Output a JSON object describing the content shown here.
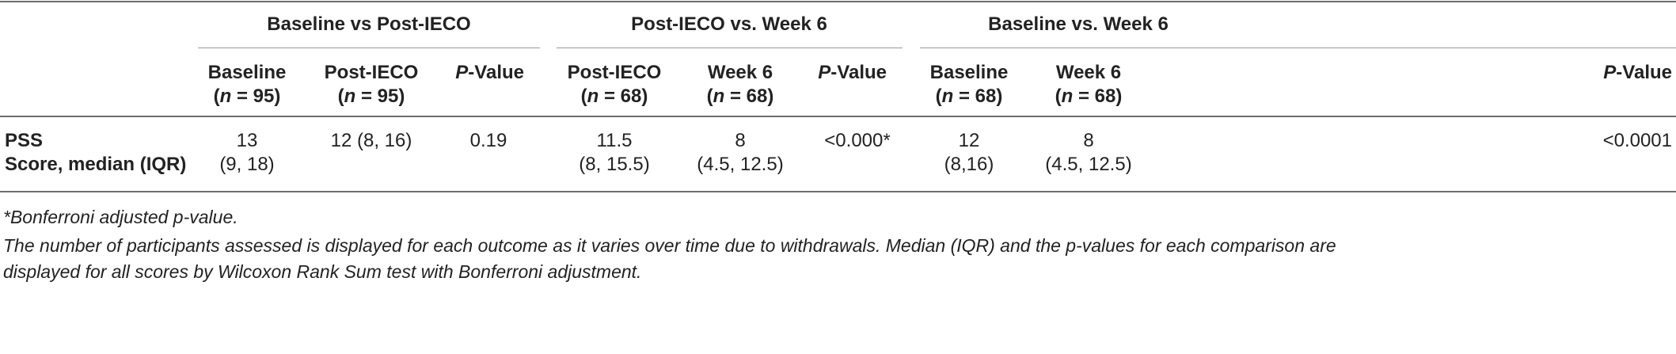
{
  "groups": [
    {
      "label": "Baseline vs Post-IECO"
    },
    {
      "label": "Post-IECO vs. Week 6"
    },
    {
      "label": "Baseline vs. Week 6"
    }
  ],
  "columns": [
    {
      "title": "Baseline",
      "n": "(n = 95)"
    },
    {
      "title": "Post-IECO",
      "n": "(n = 95)"
    },
    {
      "title_prefix": "P",
      "title_suffix": "-Value"
    },
    {
      "title": "Post-IECO",
      "n": "(n = 68)"
    },
    {
      "title": "Week 6",
      "n": "(n = 68)"
    },
    {
      "title_prefix": "P",
      "title_suffix": "-Value"
    },
    {
      "title": "Baseline",
      "n": "(n = 68)"
    },
    {
      "title": "Week 6",
      "n": "(n = 68)"
    },
    {
      "title_prefix": "P",
      "title_suffix": "-Value"
    }
  ],
  "row": {
    "label_line1": "PSS",
    "label_line2": "Score, median (IQR)",
    "cells": [
      {
        "line1": "13",
        "line2": "(9, 18)"
      },
      {
        "line1": "12 (8, 16)",
        "line2": ""
      },
      {
        "line1": "0.19",
        "line2": ""
      },
      {
        "line1": "11.5",
        "line2": "(8, 15.5)"
      },
      {
        "line1": "8",
        "line2": "(4.5, 12.5)"
      },
      {
        "line1": "<0.000*",
        "line2": ""
      },
      {
        "line1": "12",
        "line2": "(8,16)"
      },
      {
        "line1": "8",
        "line2": "(4.5, 12.5)"
      },
      {
        "line1": "<0.0001",
        "line2": ""
      }
    ]
  },
  "footnotes": {
    "note1": "*Bonferroni adjusted p-value.",
    "note2": "The number of participants assessed is displayed for each outcome as it varies over time due to withdrawals. Median (IQR) and the p-values for each comparison are",
    "note3": "displayed for all scores by Wilcoxon Rank Sum test with Bonferroni adjustment."
  }
}
